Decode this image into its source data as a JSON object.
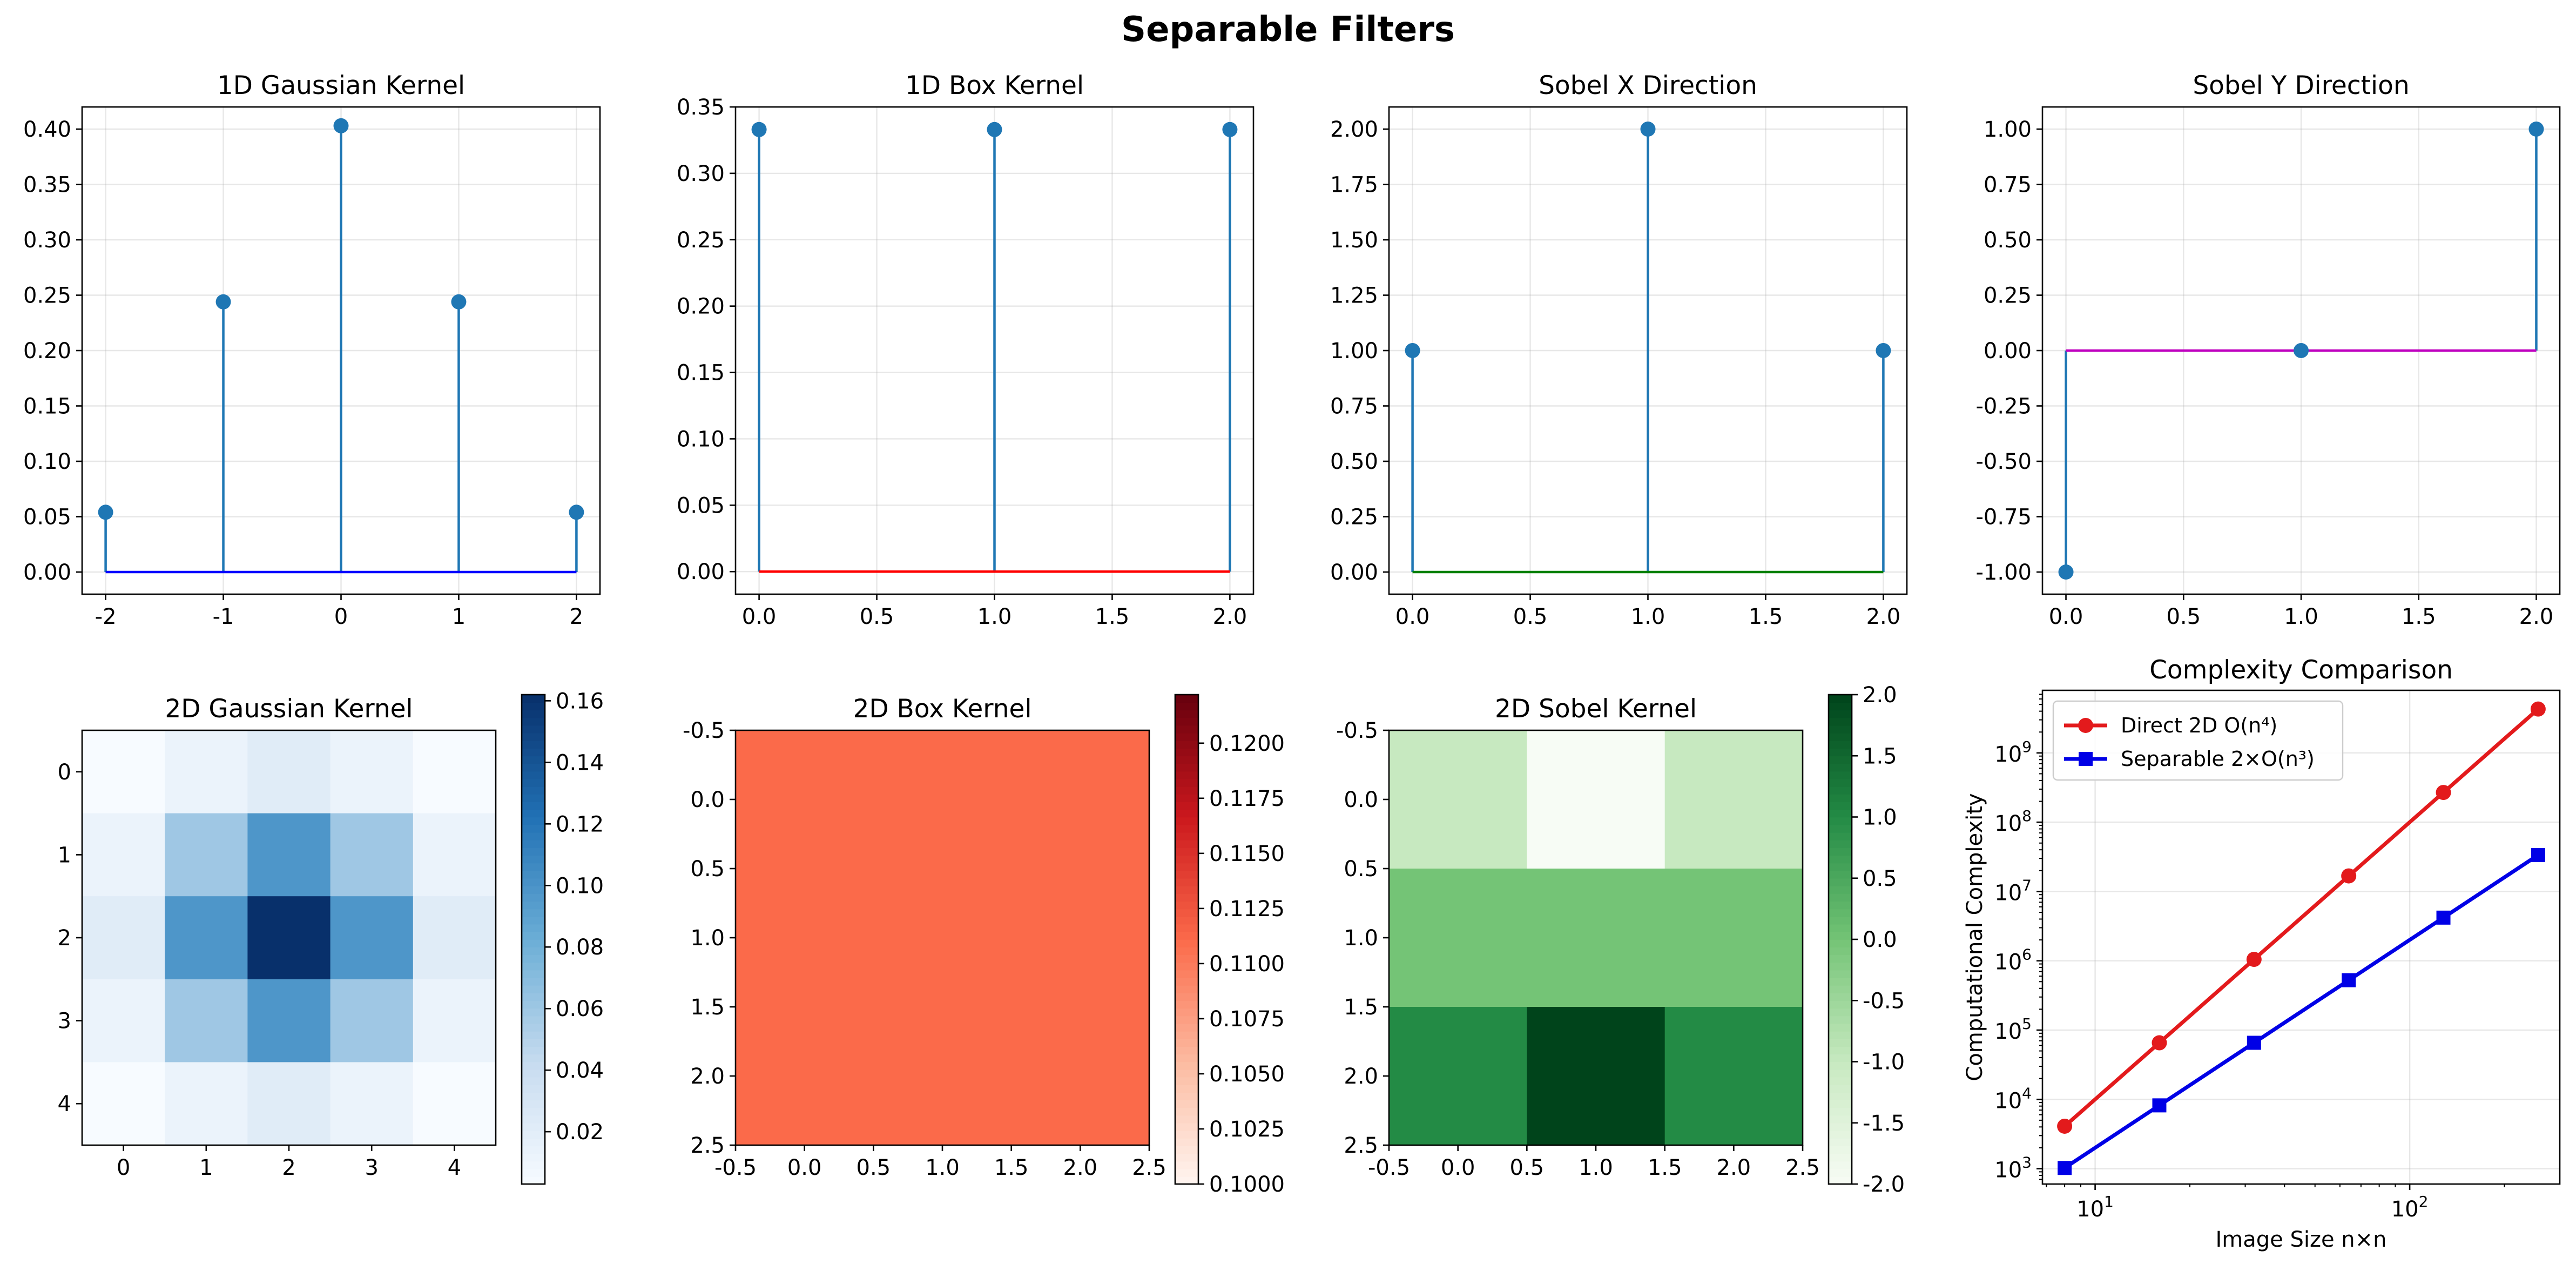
{
  "figure": {
    "title": "Separable Filters"
  },
  "chart_data": [
    {
      "type": "stem",
      "title": "1D Gaussian Kernel",
      "x": [
        -2,
        -1,
        0,
        1,
        2
      ],
      "values": [
        0.054,
        0.244,
        0.403,
        0.244,
        0.054
      ],
      "xlim": [
        -2.2,
        2.2
      ],
      "ylim": [
        -0.02,
        0.42
      ],
      "xticks": [
        -2,
        -1,
        0,
        1,
        2
      ],
      "xtick_labels": [
        "-2",
        "-1",
        "0",
        "1",
        "2"
      ],
      "yticks": [
        0,
        0.05,
        0.1,
        0.15,
        0.2,
        0.25,
        0.3,
        0.35,
        0.4
      ],
      "ytick_labels": [
        "0.00",
        "0.05",
        "0.10",
        "0.15",
        "0.20",
        "0.25",
        "0.30",
        "0.35",
        "0.40"
      ],
      "colors": {
        "stem": "#1f77b4",
        "baseline": "#0000ff"
      },
      "grid": true
    },
    {
      "type": "stem",
      "title": "1D Box Kernel",
      "x": [
        0,
        1,
        2
      ],
      "values": [
        0.333,
        0.333,
        0.333
      ],
      "xlim": [
        -0.1,
        2.1
      ],
      "ylim": [
        -0.017,
        0.35
      ],
      "xticks": [
        0,
        0.5,
        1,
        1.5,
        2
      ],
      "xtick_labels": [
        "0.0",
        "0.5",
        "1.0",
        "1.5",
        "2.0"
      ],
      "yticks": [
        0,
        0.05,
        0.1,
        0.15,
        0.2,
        0.25,
        0.3,
        0.35
      ],
      "ytick_labels": [
        "0.00",
        "0.05",
        "0.10",
        "0.15",
        "0.20",
        "0.25",
        "0.30",
        "0.35"
      ],
      "colors": {
        "stem": "#1f77b4",
        "baseline": "#ff0000"
      },
      "grid": true
    },
    {
      "type": "stem",
      "title": "Sobel X Direction",
      "x": [
        0,
        1,
        2
      ],
      "values": [
        1,
        2,
        1
      ],
      "xlim": [
        -0.1,
        2.1
      ],
      "ylim": [
        -0.1,
        2.1
      ],
      "xticks": [
        0,
        0.5,
        1,
        1.5,
        2
      ],
      "xtick_labels": [
        "0.0",
        "0.5",
        "1.0",
        "1.5",
        "2.0"
      ],
      "yticks": [
        0,
        0.25,
        0.5,
        0.75,
        1,
        1.25,
        1.5,
        1.75,
        2
      ],
      "ytick_labels": [
        "0.00",
        "0.25",
        "0.50",
        "0.75",
        "1.00",
        "1.25",
        "1.50",
        "1.75",
        "2.00"
      ],
      "colors": {
        "stem": "#1f77b4",
        "baseline": "#008000"
      },
      "grid": true
    },
    {
      "type": "stem",
      "title": "Sobel Y Direction",
      "x": [
        0,
        1,
        2
      ],
      "values": [
        -1,
        0,
        1
      ],
      "xlim": [
        -0.1,
        2.1
      ],
      "ylim": [
        -1.1,
        1.1
      ],
      "xticks": [
        0,
        0.5,
        1,
        1.5,
        2
      ],
      "xtick_labels": [
        "0.0",
        "0.5",
        "1.0",
        "1.5",
        "2.0"
      ],
      "yticks": [
        -1,
        -0.75,
        -0.5,
        -0.25,
        0,
        0.25,
        0.5,
        0.75,
        1
      ],
      "ytick_labels": [
        "-1.00",
        "-0.75",
        "-0.50",
        "-0.25",
        "0.00",
        "0.25",
        "0.50",
        "0.75",
        "1.00"
      ],
      "colors": {
        "stem": "#1f77b4",
        "baseline": "#bf00bf"
      },
      "grid": true
    },
    {
      "type": "heatmap",
      "title": "2D Gaussian Kernel",
      "values": [
        [
          0.003,
          0.013,
          0.022,
          0.013,
          0.003
        ],
        [
          0.013,
          0.06,
          0.098,
          0.06,
          0.013
        ],
        [
          0.022,
          0.098,
          0.162,
          0.098,
          0.022
        ],
        [
          0.013,
          0.06,
          0.098,
          0.06,
          0.013
        ],
        [
          0.003,
          0.013,
          0.022,
          0.013,
          0.003
        ]
      ],
      "xlim": [
        -0.5,
        4.5
      ],
      "ylim": [
        -0.5,
        4.5
      ],
      "xticks": [
        0,
        1,
        2,
        3,
        4
      ],
      "xtick_labels": [
        "0",
        "1",
        "2",
        "3",
        "4"
      ],
      "yticks": [
        0,
        1,
        2,
        3,
        4
      ],
      "ytick_labels": [
        "0",
        "1",
        "2",
        "3",
        "4"
      ],
      "colormap": "Blues",
      "colorbar": {
        "range": [
          0.003,
          0.162
        ],
        "ticks": [
          0.02,
          0.04,
          0.06,
          0.08,
          0.1,
          0.12,
          0.14,
          0.16
        ],
        "tick_labels": [
          "0.02",
          "0.04",
          "0.06",
          "0.08",
          "0.10",
          "0.12",
          "0.14",
          "0.16"
        ]
      }
    },
    {
      "type": "heatmap",
      "title": "2D Box Kernel",
      "values": [
        [
          0.1111,
          0.1111,
          0.1111
        ],
        [
          0.1111,
          0.1111,
          0.1111
        ],
        [
          0.1111,
          0.1111,
          0.1111
        ]
      ],
      "xlim": [
        -0.5,
        2.5
      ],
      "ylim": [
        -0.5,
        2.5
      ],
      "xticks": [
        -0.5,
        0,
        0.5,
        1,
        1.5,
        2,
        2.5
      ],
      "xtick_labels": [
        "-0.5",
        "0.0",
        "0.5",
        "1.0",
        "1.5",
        "2.0",
        "2.5"
      ],
      "yticks": [
        -0.5,
        0,
        0.5,
        1,
        1.5,
        2,
        2.5
      ],
      "ytick_labels": [
        "-0.5",
        "0.0",
        "0.5",
        "1.0",
        "1.5",
        "2.0",
        "2.5"
      ],
      "colormap": "Reds",
      "colorbar": {
        "range": [
          0.1,
          0.1222
        ],
        "ticks": [
          0.1,
          0.1025,
          0.105,
          0.1075,
          0.11,
          0.1125,
          0.115,
          0.1175,
          0.12
        ],
        "tick_labels": [
          "0.1000",
          "0.1025",
          "0.1050",
          "0.1075",
          "0.1100",
          "0.1125",
          "0.1150",
          "0.1175",
          "0.1200"
        ]
      }
    },
    {
      "type": "heatmap",
      "title": "2D Sobel Kernel",
      "values": [
        [
          -1,
          -2,
          -1
        ],
        [
          0,
          0,
          0
        ],
        [
          1,
          2,
          1
        ]
      ],
      "xlim": [
        -0.5,
        2.5
      ],
      "ylim": [
        -0.5,
        2.5
      ],
      "xticks": [
        -0.5,
        0,
        0.5,
        1,
        1.5,
        2,
        2.5
      ],
      "xtick_labels": [
        "-0.5",
        "0.0",
        "0.5",
        "1.0",
        "1.5",
        "2.0",
        "2.5"
      ],
      "yticks": [
        -0.5,
        0,
        0.5,
        1,
        1.5,
        2,
        2.5
      ],
      "ytick_labels": [
        "-0.5",
        "0.0",
        "0.5",
        "1.0",
        "1.5",
        "2.0",
        "2.5"
      ],
      "colormap": "Greens",
      "colorbar": {
        "range": [
          -2,
          2
        ],
        "ticks": [
          -2,
          -1.5,
          -1,
          -0.5,
          0,
          0.5,
          1,
          1.5,
          2
        ],
        "tick_labels": [
          "-2.0",
          "-1.5",
          "-1.0",
          "-0.5",
          "0.0",
          "0.5",
          "1.0",
          "1.5",
          "2.0"
        ]
      }
    },
    {
      "type": "line",
      "title": "Complexity Comparison",
      "xlabel": "Image Size n×n",
      "ylabel": "Computational Complexity",
      "x": [
        8,
        16,
        32,
        64,
        128,
        256
      ],
      "series": [
        {
          "name": "Direct 2D O(n⁴)",
          "values": [
            4096,
            65536,
            1048576,
            16777216,
            268435456,
            4294967296
          ],
          "color": "#e31a1c",
          "marker": "circle"
        },
        {
          "name": "Separable 2×O(n³)",
          "values": [
            1024,
            8192,
            65536,
            524288,
            4194304,
            33554432
          ],
          "color": "#0000e6",
          "marker": "square"
        }
      ],
      "xscale": "log",
      "yscale": "log",
      "xlim": [
        6.8,
        300
      ],
      "ylim": [
        600,
        8000000000
      ],
      "xticks": [
        10,
        100
      ],
      "xtick_exponents": [
        "1",
        "2"
      ],
      "yticks": [
        1000,
        10000,
        100000,
        1000000,
        10000000,
        100000000,
        1000000000
      ],
      "ytick_exponents": [
        "3",
        "4",
        "5",
        "6",
        "7",
        "8",
        "9"
      ],
      "tick_base": "10",
      "legend": "top-left",
      "grid": true
    }
  ]
}
